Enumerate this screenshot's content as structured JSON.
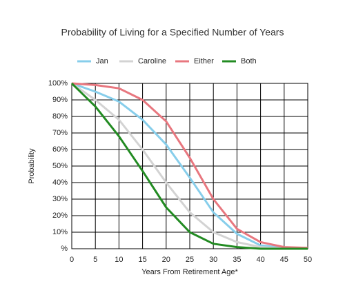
{
  "chart_data": {
    "type": "line",
    "title": "Probability of Living for a Specified Number of Years",
    "x_label": "Years From Retirement Age*",
    "y_label": "Probability",
    "x": [
      0,
      5,
      10,
      15,
      20,
      25,
      30,
      35,
      40,
      45,
      50
    ],
    "series": [
      {
        "name": "Jan",
        "color": "#87ceeb",
        "values": [
          100,
          95,
          89,
          78,
          63,
          43,
          22,
          9,
          2,
          0.5,
          0
        ]
      },
      {
        "name": "Caroline",
        "color": "#d3d3d3",
        "values": [
          100,
          90,
          78,
          60,
          40,
          22,
          10,
          4,
          1,
          0,
          0
        ]
      },
      {
        "name": "Either",
        "color": "#e8777f",
        "values": [
          100,
          99,
          97,
          90,
          77,
          55,
          30,
          12,
          4,
          1,
          0.5
        ]
      },
      {
        "name": "Both",
        "color": "#228b22",
        "values": [
          100,
          86,
          68,
          47,
          25,
          10,
          3,
          1,
          0,
          0,
          0
        ]
      }
    ],
    "xlim": [
      0,
      50
    ],
    "ylim": [
      0,
      100
    ],
    "xticks": [
      0,
      5,
      10,
      15,
      20,
      25,
      30,
      35,
      40,
      45,
      50
    ],
    "yticks": [
      {
        "value": 0,
        "label": "%"
      },
      {
        "value": 10,
        "label": "10%"
      },
      {
        "value": 20,
        "label": "20%"
      },
      {
        "value": 30,
        "label": "30%"
      },
      {
        "value": 40,
        "label": "40%"
      },
      {
        "value": 50,
        "label": "50%"
      },
      {
        "value": 60,
        "label": "60%"
      },
      {
        "value": 70,
        "label": "70%"
      },
      {
        "value": 80,
        "label": "80%"
      },
      {
        "value": 90,
        "label": "90%"
      },
      {
        "value": 100,
        "label": "100%"
      }
    ],
    "grid": true,
    "legend": "top"
  }
}
